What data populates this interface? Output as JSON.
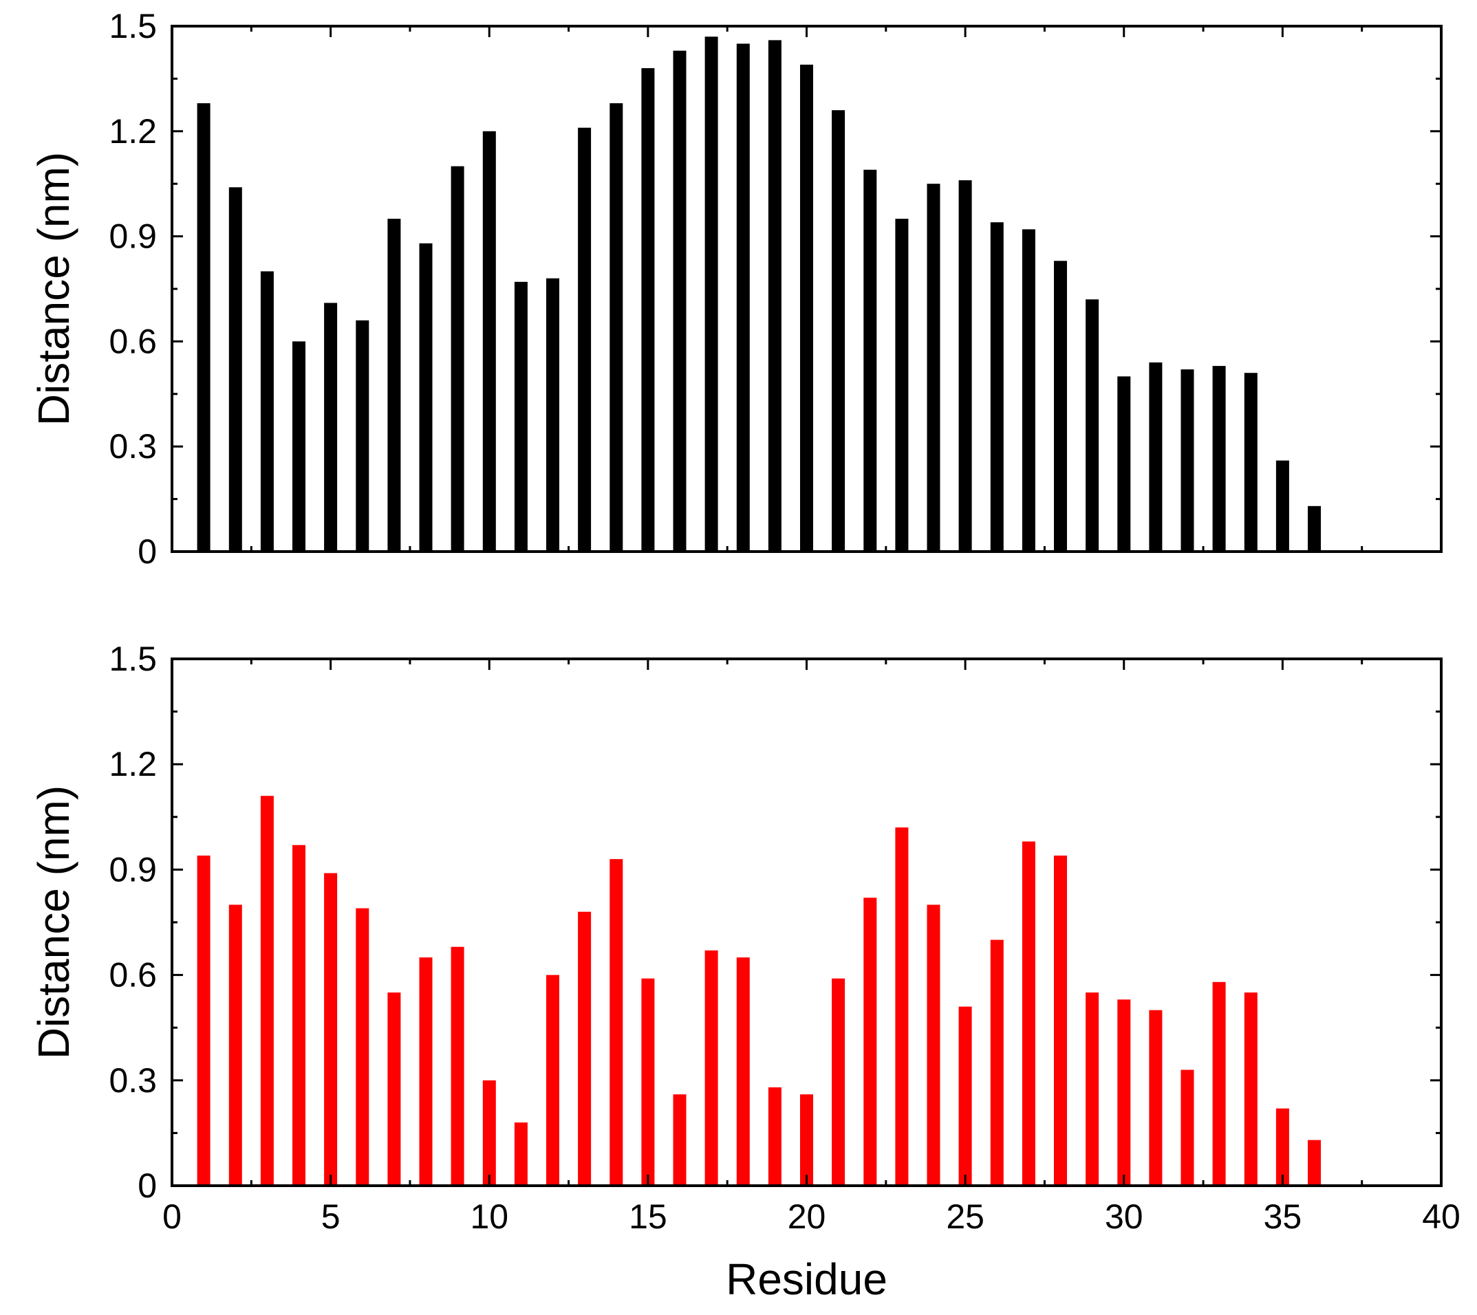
{
  "chart_data": [
    {
      "type": "bar",
      "xlabel": "",
      "ylabel": "Distance (nm)",
      "xlim": [
        0,
        40
      ],
      "ylim": [
        0,
        1.5
      ],
      "xticks": [
        "0",
        "5",
        "10",
        "15",
        "20",
        "25",
        "30",
        "35",
        "40"
      ],
      "yticks": [
        "0",
        "0.3",
        "0.6",
        "0.9",
        "1.2",
        "1.5"
      ],
      "show_x_tick_labels": false,
      "grid": false,
      "legend": "none",
      "x": [
        1,
        2,
        3,
        4,
        5,
        6,
        7,
        8,
        9,
        10,
        11,
        12,
        13,
        14,
        15,
        16,
        17,
        18,
        19,
        20,
        21,
        22,
        23,
        24,
        25,
        26,
        27,
        28,
        29,
        30,
        31,
        32,
        33,
        34,
        35,
        36
      ],
      "series": [
        {
          "color": "#000000",
          "values": [
            1.28,
            1.04,
            0.8,
            0.6,
            0.71,
            0.66,
            0.95,
            0.88,
            1.1,
            1.2,
            0.77,
            0.78,
            1.21,
            1.28,
            1.38,
            1.43,
            1.47,
            1.45,
            1.46,
            1.39,
            1.26,
            1.09,
            0.95,
            1.05,
            1.06,
            0.94,
            0.92,
            0.83,
            0.72,
            0.5,
            0.54,
            0.52,
            0.53,
            0.51,
            0.26,
            0.13
          ]
        }
      ]
    },
    {
      "type": "bar",
      "xlabel": "Residue",
      "ylabel": "Distance (nm)",
      "xlim": [
        0,
        40
      ],
      "ylim": [
        0,
        1.5
      ],
      "xticks": [
        "0",
        "5",
        "10",
        "15",
        "20",
        "25",
        "30",
        "35",
        "40"
      ],
      "yticks": [
        "0",
        "0.3",
        "0.6",
        "0.9",
        "1.2",
        "1.5"
      ],
      "show_x_tick_labels": true,
      "grid": false,
      "legend": "none",
      "x": [
        1,
        2,
        3,
        4,
        5,
        6,
        7,
        8,
        9,
        10,
        11,
        12,
        13,
        14,
        15,
        16,
        17,
        18,
        19,
        20,
        21,
        22,
        23,
        24,
        25,
        26,
        27,
        28,
        29,
        30,
        31,
        32,
        33,
        34,
        35,
        36
      ],
      "series": [
        {
          "color": "#ff0000",
          "values": [
            0.94,
            0.8,
            1.11,
            0.97,
            0.89,
            0.79,
            0.55,
            0.65,
            0.68,
            0.3,
            0.18,
            0.6,
            0.78,
            0.93,
            0.59,
            0.26,
            0.67,
            0.65,
            0.28,
            0.26,
            0.59,
            0.82,
            1.02,
            0.8,
            0.51,
            0.7,
            0.98,
            0.94,
            0.55,
            0.53,
            0.5,
            0.33,
            0.58,
            0.55,
            0.22,
            0.13
          ]
        }
      ]
    }
  ]
}
